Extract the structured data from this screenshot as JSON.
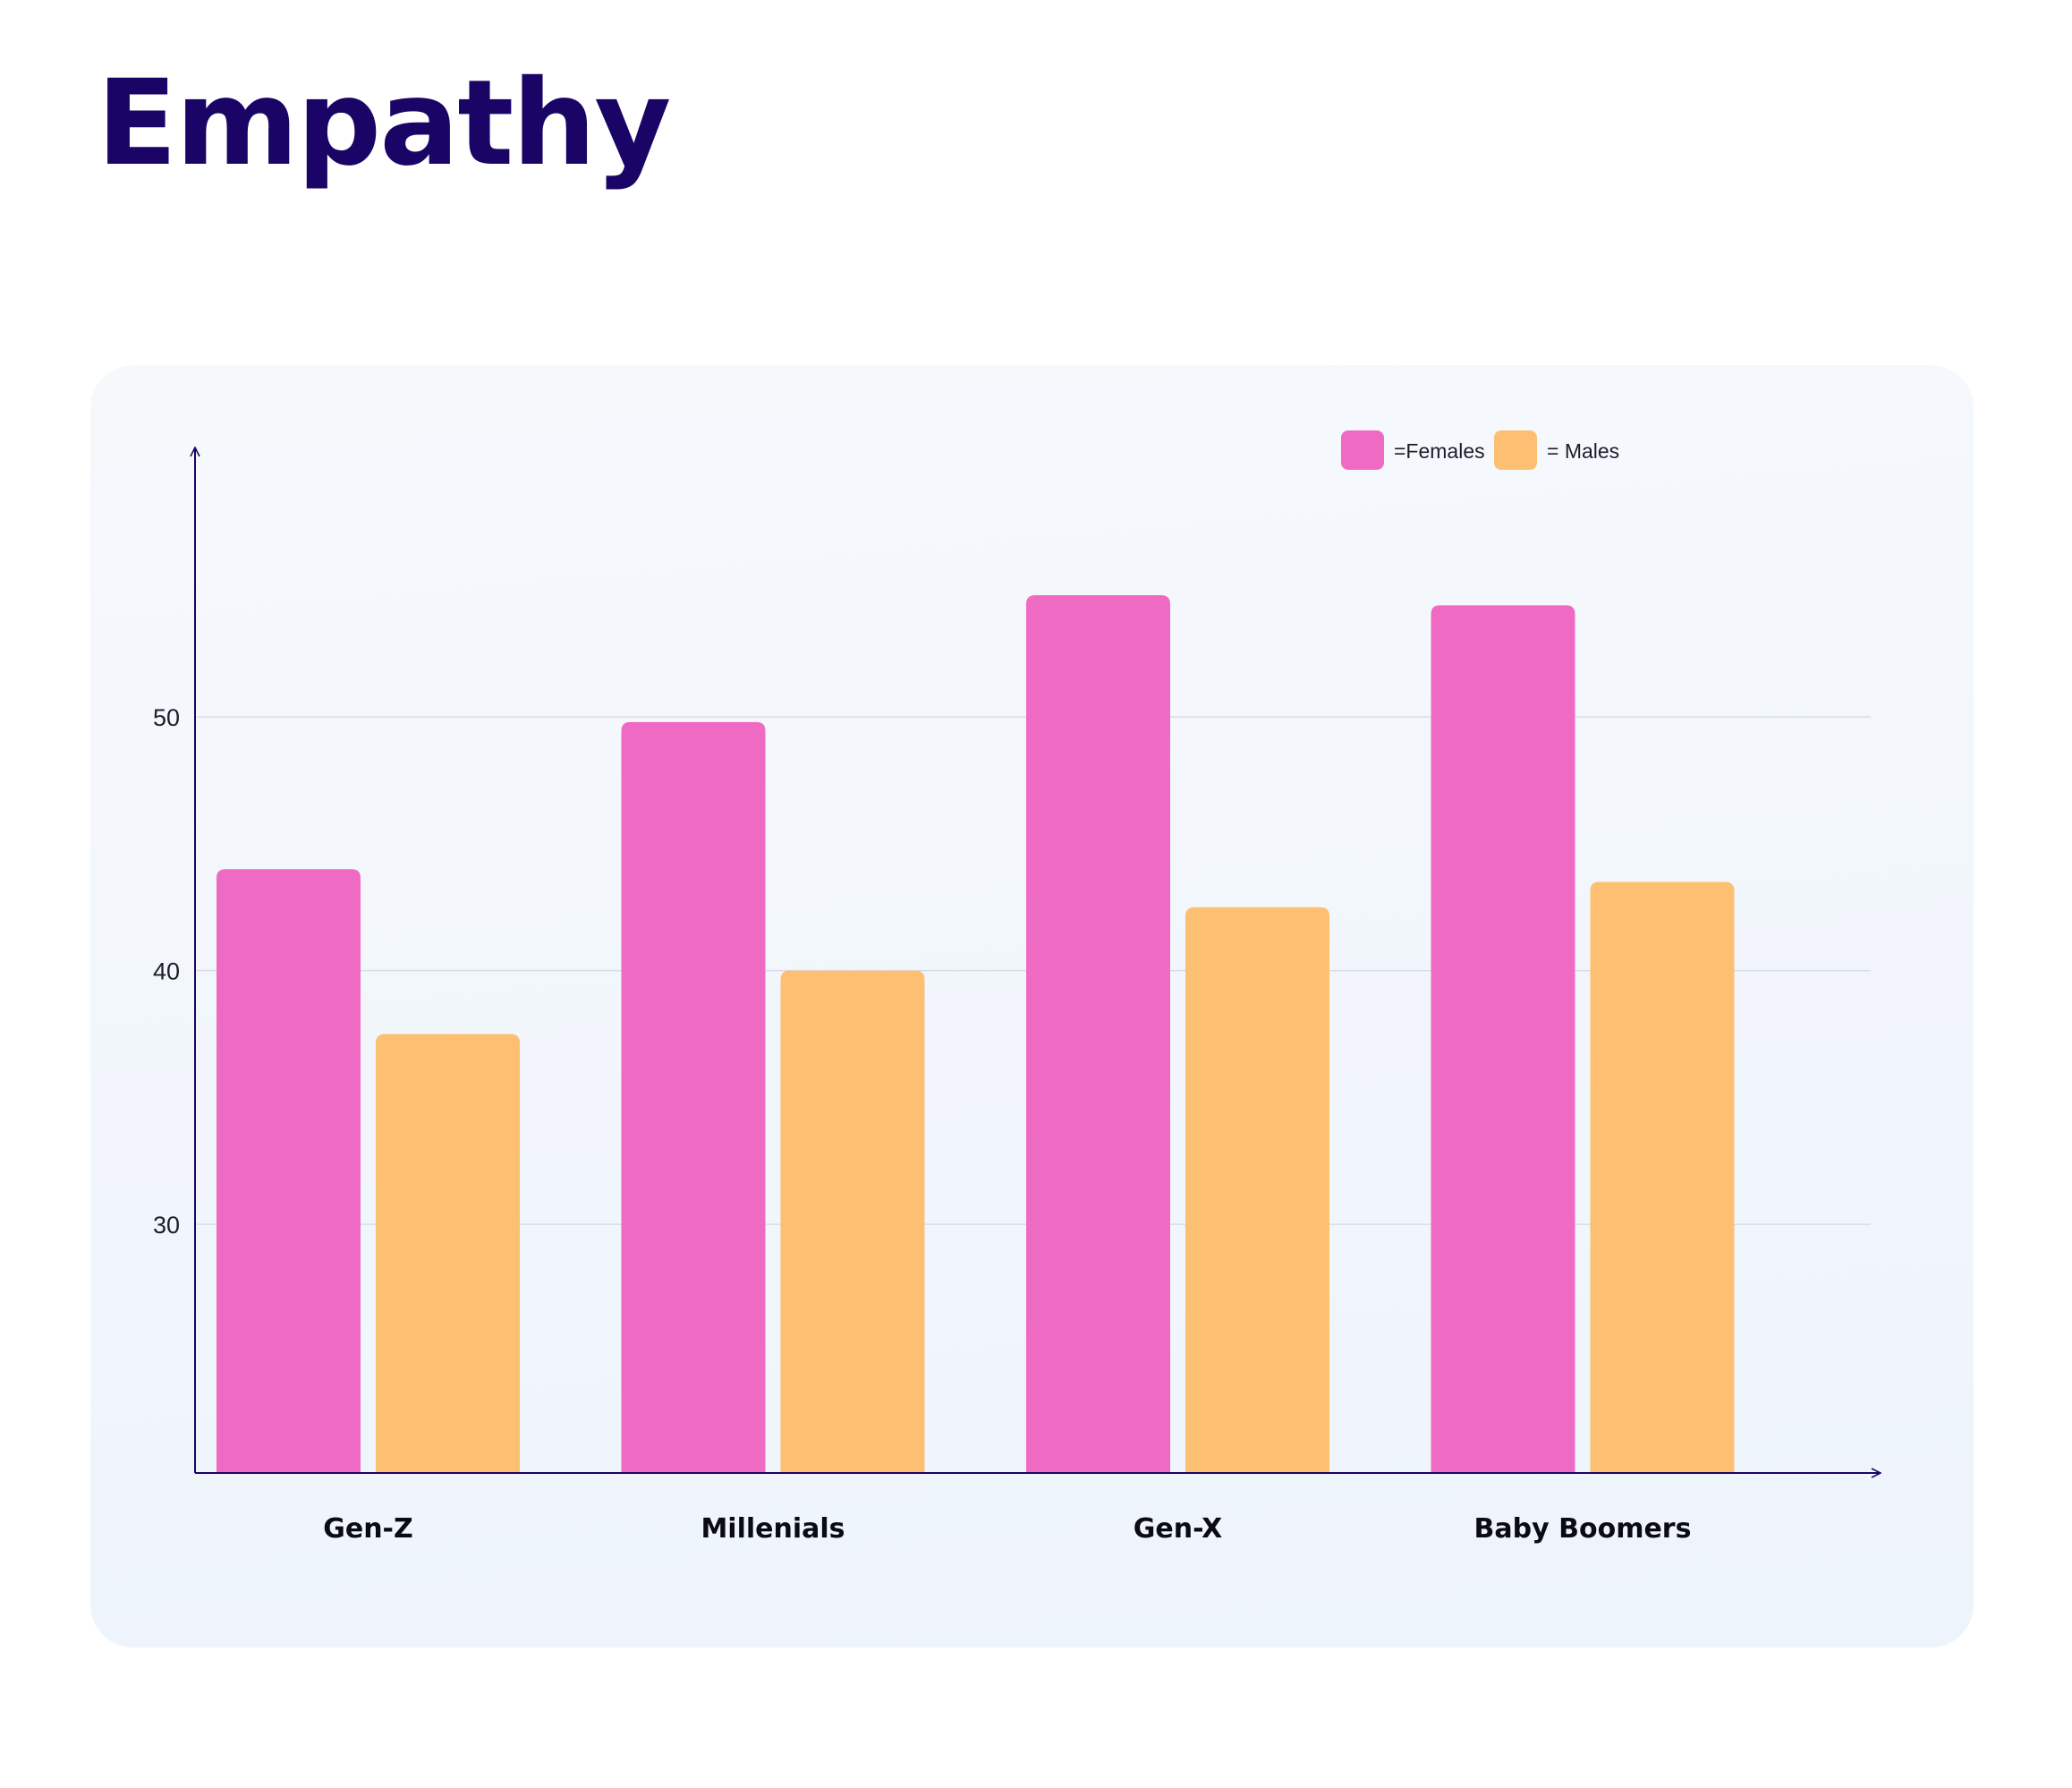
{
  "title": "Empathy",
  "colors": {
    "title": "#1a0566",
    "females": "#ef6bc3",
    "males": "#fdbf72",
    "axis": "#1a0566",
    "grid": "#d7dde6"
  },
  "chart_data": {
    "type": "bar",
    "categories": [
      "Gen-Z",
      "Millenials",
      "Gen-X",
      "Baby Boomers"
    ],
    "series": [
      {
        "name": "=Females",
        "color": "#ef6bc3",
        "values": [
          44,
          49.8,
          54.8,
          54.4
        ]
      },
      {
        "name": "= Males",
        "color": "#fdbf72",
        "values": [
          37.5,
          40,
          42.5,
          43.5
        ]
      }
    ],
    "yticks": [
      30,
      40,
      50
    ],
    "ylim": [
      20.2,
      60.2
    ],
    "grid": true,
    "legend_position": "top-right"
  }
}
